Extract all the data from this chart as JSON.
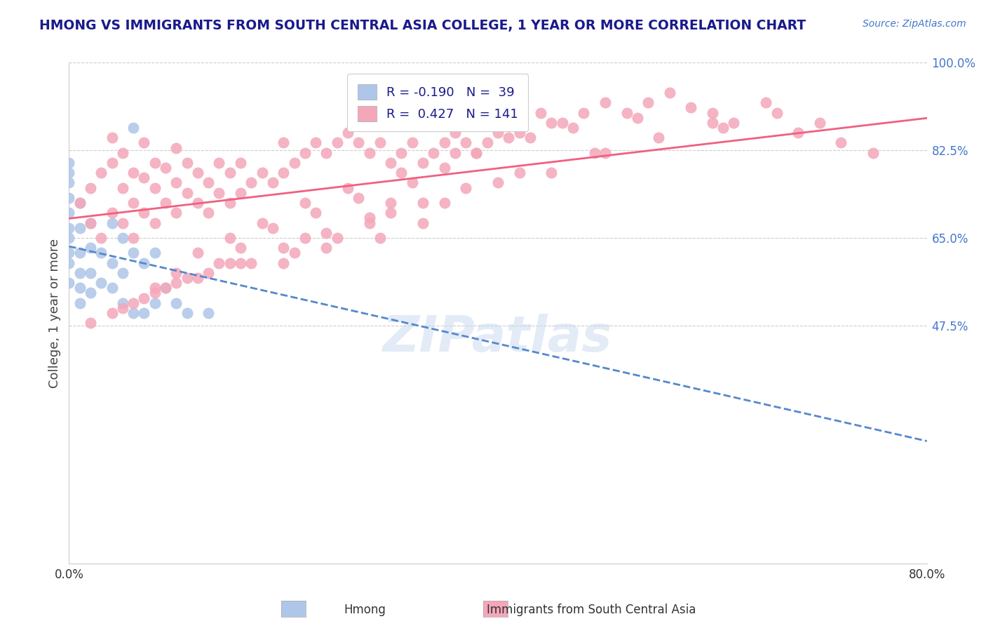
{
  "title": "HMONG VS IMMIGRANTS FROM SOUTH CENTRAL ASIA COLLEGE, 1 YEAR OR MORE CORRELATION CHART",
  "source": "Source: ZipAtlas.com",
  "xlabel_bottom": "",
  "ylabel": "College, 1 year or more",
  "xmin": 0.0,
  "xmax": 0.8,
  "ymin": 0.0,
  "ymax": 1.0,
  "x_ticks": [
    0.0,
    0.1,
    0.2,
    0.3,
    0.4,
    0.5,
    0.6,
    0.7,
    0.8
  ],
  "x_tick_labels": [
    "0.0%",
    "",
    "",
    "",
    "",
    "",
    "",
    "",
    "80.0%"
  ],
  "y_ticks_right": [
    0.475,
    0.65,
    0.825,
    1.0
  ],
  "y_tick_labels_right": [
    "47.5%",
    "65.0%",
    "82.5%",
    "100.0%"
  ],
  "legend_items": [
    {
      "label": "R = -0.190   N =  39",
      "color": "#aec6e8"
    },
    {
      "label": "R =  0.427   N = 141",
      "color": "#f4a7b9"
    }
  ],
  "legend_labels_bottom": [
    "Hmong",
    "Immigrants from South Central Asia"
  ],
  "hmong_R": -0.19,
  "hmong_N": 39,
  "sca_R": 0.427,
  "sca_N": 141,
  "watermark": "ZIPatlas",
  "title_color": "#1a1a8c",
  "source_color": "#4477cc",
  "axis_label_color": "#555555",
  "right_tick_color": "#4477cc",
  "background_color": "#ffffff",
  "plot_bg_color": "#ffffff",
  "grid_color": "#cccccc",
  "hmong_dot_color": "#aec6e8",
  "sca_dot_color": "#f4a7b9",
  "hmong_line_color": "#5588cc",
  "sca_line_color": "#f06080",
  "hmong_dots_x": [
    0.0,
    0.0,
    0.0,
    0.0,
    0.0,
    0.0,
    0.0,
    0.0,
    0.0,
    0.0,
    0.01,
    0.01,
    0.01,
    0.01,
    0.01,
    0.01,
    0.02,
    0.02,
    0.02,
    0.02,
    0.03,
    0.03,
    0.04,
    0.04,
    0.04,
    0.05,
    0.05,
    0.05,
    0.06,
    0.06,
    0.07,
    0.07,
    0.08,
    0.08,
    0.09,
    0.1,
    0.11,
    0.13,
    0.06
  ],
  "hmong_dots_y": [
    0.56,
    0.6,
    0.62,
    0.65,
    0.67,
    0.7,
    0.73,
    0.76,
    0.78,
    0.8,
    0.52,
    0.55,
    0.58,
    0.62,
    0.67,
    0.72,
    0.54,
    0.58,
    0.63,
    0.68,
    0.56,
    0.62,
    0.55,
    0.6,
    0.68,
    0.52,
    0.58,
    0.65,
    0.5,
    0.62,
    0.5,
    0.6,
    0.52,
    0.62,
    0.55,
    0.52,
    0.5,
    0.5,
    0.87
  ],
  "sca_dots_x": [
    0.01,
    0.02,
    0.02,
    0.03,
    0.03,
    0.04,
    0.04,
    0.04,
    0.05,
    0.05,
    0.05,
    0.06,
    0.06,
    0.06,
    0.07,
    0.07,
    0.07,
    0.08,
    0.08,
    0.08,
    0.09,
    0.09,
    0.1,
    0.1,
    0.1,
    0.11,
    0.11,
    0.12,
    0.12,
    0.13,
    0.13,
    0.14,
    0.14,
    0.15,
    0.15,
    0.16,
    0.16,
    0.17,
    0.18,
    0.19,
    0.2,
    0.2,
    0.21,
    0.22,
    0.23,
    0.24,
    0.25,
    0.26,
    0.27,
    0.28,
    0.29,
    0.3,
    0.31,
    0.32,
    0.33,
    0.34,
    0.35,
    0.36,
    0.37,
    0.38,
    0.39,
    0.4,
    0.41,
    0.42,
    0.44,
    0.46,
    0.48,
    0.5,
    0.52,
    0.54,
    0.56,
    0.6,
    0.65,
    0.75,
    0.25,
    0.28,
    0.3,
    0.1,
    0.12,
    0.15,
    0.18,
    0.22,
    0.26,
    0.31,
    0.2,
    0.24,
    0.08,
    0.14,
    0.16,
    0.19,
    0.23,
    0.27,
    0.32,
    0.35,
    0.38,
    0.41,
    0.45,
    0.33,
    0.29,
    0.21,
    0.17,
    0.13,
    0.09,
    0.06,
    0.04,
    0.02,
    0.07,
    0.11,
    0.36,
    0.43,
    0.47,
    0.53,
    0.58,
    0.62,
    0.68,
    0.72,
    0.05,
    0.08,
    0.12,
    0.16,
    0.2,
    0.24,
    0.28,
    0.33,
    0.37,
    0.42,
    0.49,
    0.55,
    0.61,
    0.66,
    0.7,
    0.1,
    0.15,
    0.22,
    0.3,
    0.4,
    0.5,
    0.6,
    0.45,
    0.35
  ],
  "sca_dots_y": [
    0.72,
    0.68,
    0.75,
    0.65,
    0.78,
    0.7,
    0.8,
    0.85,
    0.68,
    0.75,
    0.82,
    0.72,
    0.78,
    0.65,
    0.7,
    0.77,
    0.84,
    0.68,
    0.75,
    0.8,
    0.72,
    0.79,
    0.7,
    0.76,
    0.83,
    0.74,
    0.8,
    0.72,
    0.78,
    0.7,
    0.76,
    0.74,
    0.8,
    0.72,
    0.78,
    0.74,
    0.8,
    0.76,
    0.78,
    0.76,
    0.78,
    0.84,
    0.8,
    0.82,
    0.84,
    0.82,
    0.84,
    0.86,
    0.84,
    0.82,
    0.84,
    0.8,
    0.82,
    0.84,
    0.8,
    0.82,
    0.84,
    0.86,
    0.84,
    0.82,
    0.84,
    0.86,
    0.88,
    0.86,
    0.9,
    0.88,
    0.9,
    0.92,
    0.9,
    0.92,
    0.94,
    0.9,
    0.92,
    0.82,
    0.65,
    0.68,
    0.72,
    0.58,
    0.62,
    0.65,
    0.68,
    0.72,
    0.75,
    0.78,
    0.6,
    0.63,
    0.55,
    0.6,
    0.63,
    0.67,
    0.7,
    0.73,
    0.76,
    0.79,
    0.82,
    0.85,
    0.88,
    0.68,
    0.65,
    0.62,
    0.6,
    0.58,
    0.55,
    0.52,
    0.5,
    0.48,
    0.53,
    0.57,
    0.82,
    0.85,
    0.87,
    0.89,
    0.91,
    0.88,
    0.86,
    0.84,
    0.51,
    0.54,
    0.57,
    0.6,
    0.63,
    0.66,
    0.69,
    0.72,
    0.75,
    0.78,
    0.82,
    0.85,
    0.87,
    0.9,
    0.88,
    0.56,
    0.6,
    0.65,
    0.7,
    0.76,
    0.82,
    0.88,
    0.78,
    0.72
  ]
}
